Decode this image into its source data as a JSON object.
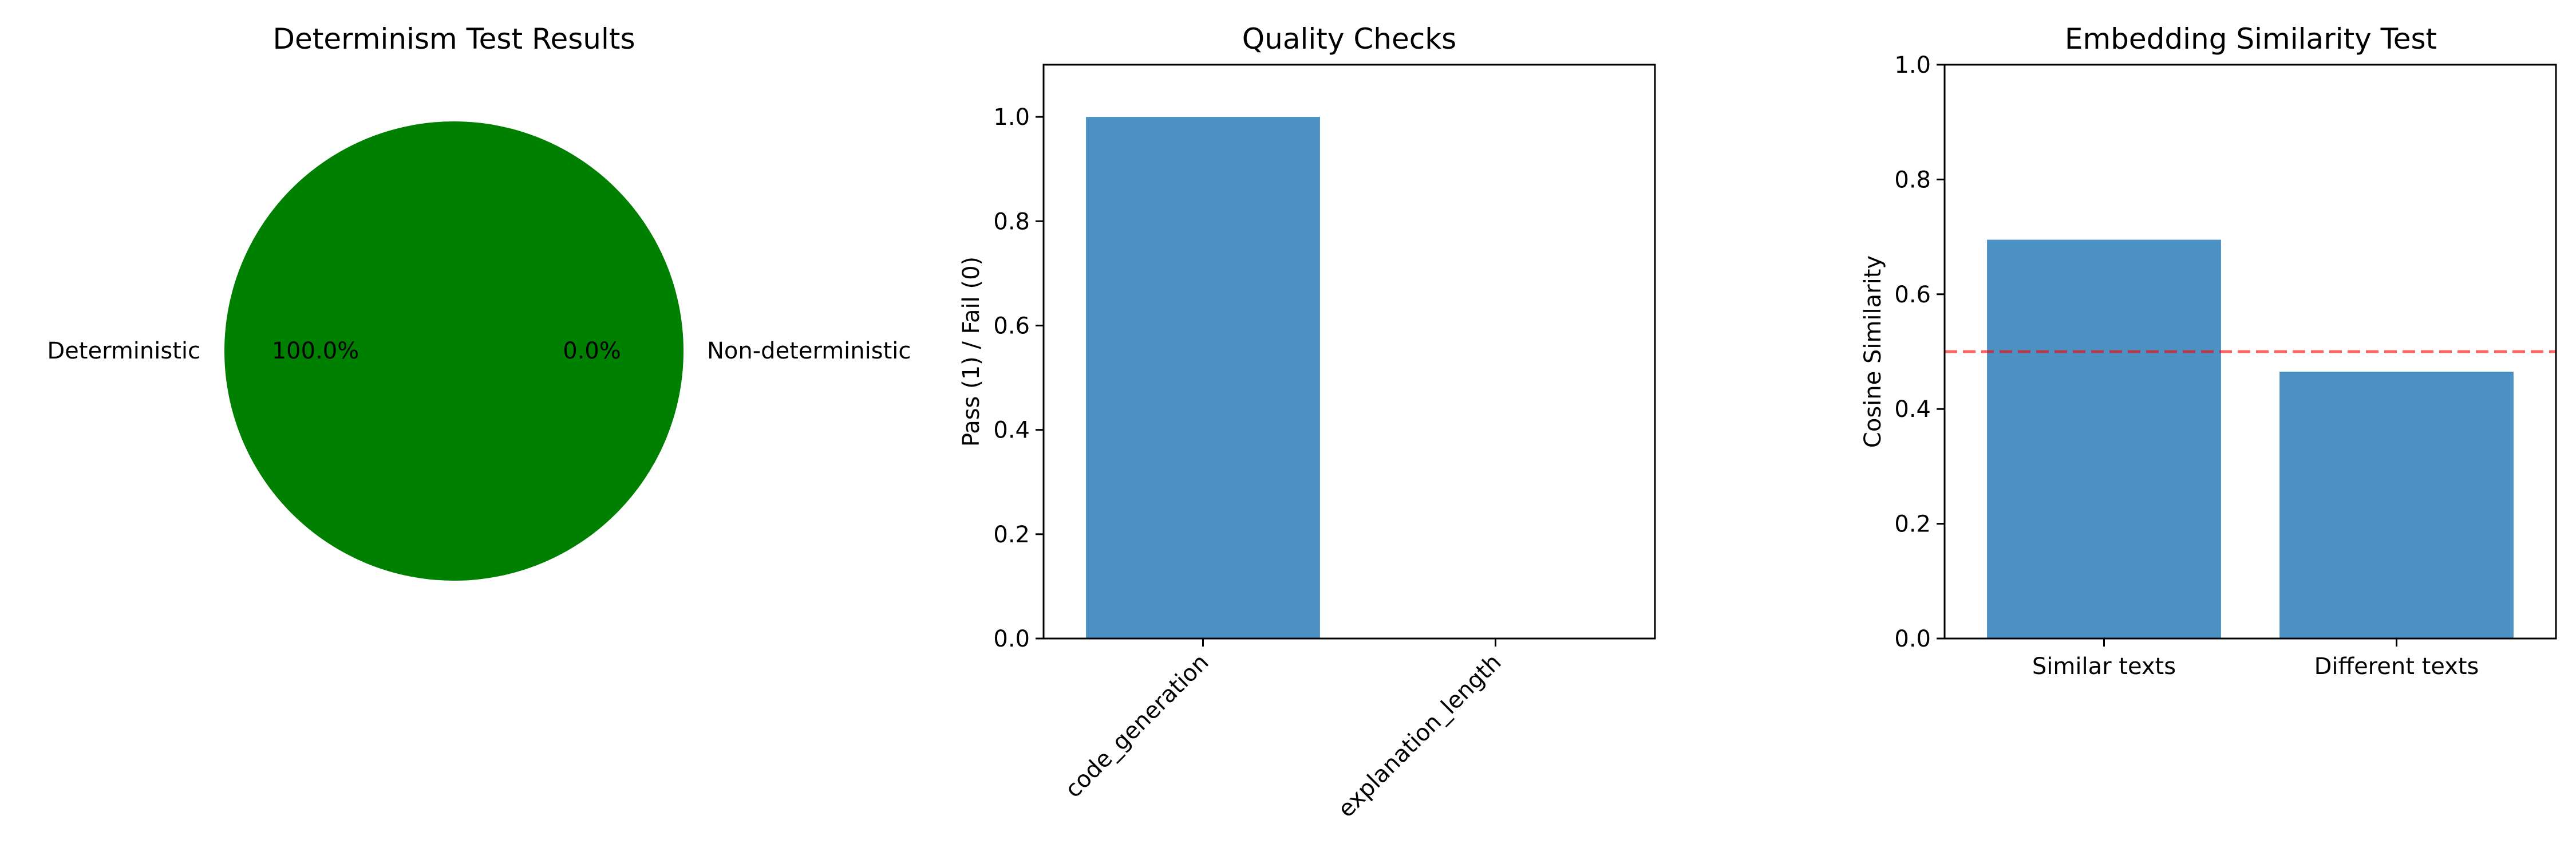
{
  "chart_data": [
    {
      "type": "pie",
      "title": "Determinism Test Results",
      "labels": [
        "Deterministic",
        "Non-deterministic"
      ],
      "values": [
        100.0,
        0.0
      ],
      "pct_labels": [
        "100.0%",
        "0.0%"
      ],
      "colors": [
        "#008000",
        "#ff0000"
      ]
    },
    {
      "type": "bar",
      "title": "Quality Checks",
      "xlabel": "",
      "ylabel": "Pass (1) / Fail (0)",
      "categories": [
        "code_generation",
        "explanation_length"
      ],
      "values": [
        1.0,
        0.0
      ],
      "ylim": [
        0,
        1.1
      ],
      "yticks": [
        "0.0",
        "0.2",
        "0.4",
        "0.6",
        "0.8",
        "1.0"
      ],
      "bar_color": "#4c91c3"
    },
    {
      "type": "bar",
      "title": "Embedding Similarity Test",
      "xlabel": "",
      "ylabel": "Cosine Similarity",
      "categories": [
        "Similar texts",
        "Different texts"
      ],
      "values": [
        0.695,
        0.465
      ],
      "ylim": [
        0,
        1.0
      ],
      "yticks": [
        "0.0",
        "0.2",
        "0.4",
        "0.6",
        "0.8",
        "1.0"
      ],
      "threshold": 0.5,
      "bar_color": "#4c91c3",
      "threshold_color": "#ff0000"
    }
  ]
}
